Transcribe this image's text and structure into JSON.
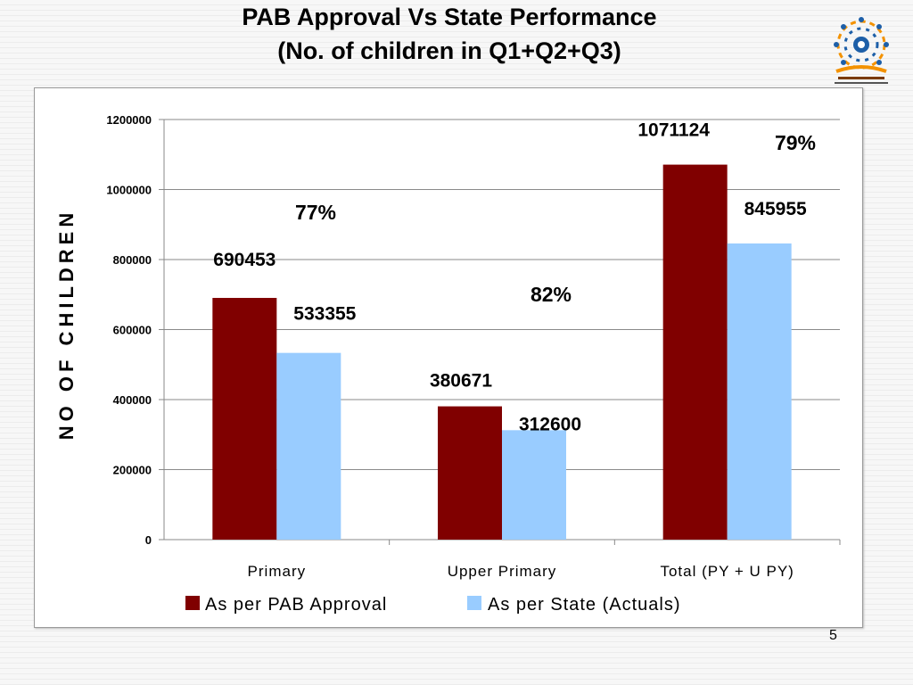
{
  "slide": {
    "title_line1": "PAB Approval  Vs State Performance",
    "title_line2": "(No. of children in Q1+Q2+Q3)",
    "page_number": "5"
  },
  "colors": {
    "pab": "#800000",
    "state": "#99ccff"
  },
  "chart_data": {
    "type": "bar",
    "categories": [
      "Primary",
      "Upper Primary",
      "Total (PY + U PY)"
    ],
    "series": [
      {
        "name": "As per PAB Approval",
        "values": [
          690453,
          380671,
          1071124
        ]
      },
      {
        "name": "As per State (Actuals)",
        "values": [
          533355,
          312600,
          845955
        ]
      }
    ],
    "data_labels": [
      [
        "690453",
        "380671",
        "1071124"
      ],
      [
        "533355",
        "312600",
        "845955"
      ]
    ],
    "percent_labels": [
      "77%",
      "82%",
      "79%"
    ],
    "ylabel": "NO OF CHILDREN",
    "ylim": [
      0,
      1200000
    ],
    "yticks": [
      0,
      200000,
      400000,
      600000,
      800000,
      1000000,
      1200000
    ],
    "grid": true,
    "legend": "bottom"
  }
}
